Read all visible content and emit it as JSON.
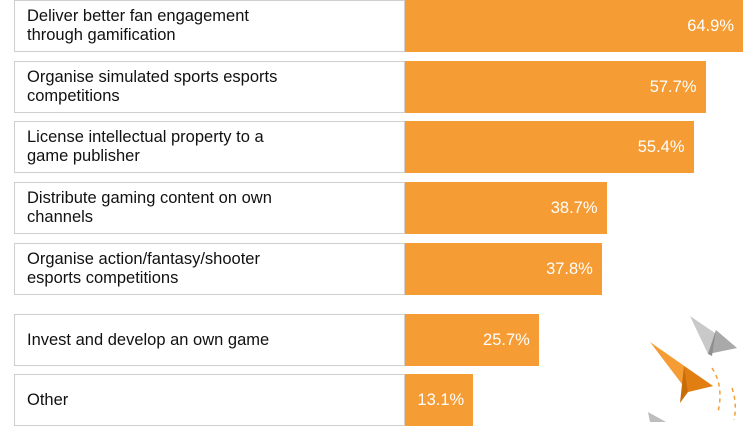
{
  "chart_data": {
    "type": "bar",
    "orientation": "horizontal",
    "categories": [
      "Deliver better fan engagement\nthrough gamification",
      "Organise simulated sports esports\ncompetitions",
      "License intellectual property to a\ngame publisher",
      "Distribute gaming content on own\nchannels",
      "Organise action/fantasy/shooter\nesports competitions",
      "Invest and develop an own game",
      "Other"
    ],
    "values": [
      64.9,
      57.7,
      55.4,
      38.7,
      37.8,
      25.7,
      13.1
    ],
    "value_labels": [
      "64.9%",
      "57.7%",
      "55.4%",
      "38.7%",
      "37.8%",
      "25.7%",
      "13.1%"
    ],
    "xlim": [
      0,
      64.9
    ],
    "bar_color": "#f59c34",
    "grid": false
  }
}
